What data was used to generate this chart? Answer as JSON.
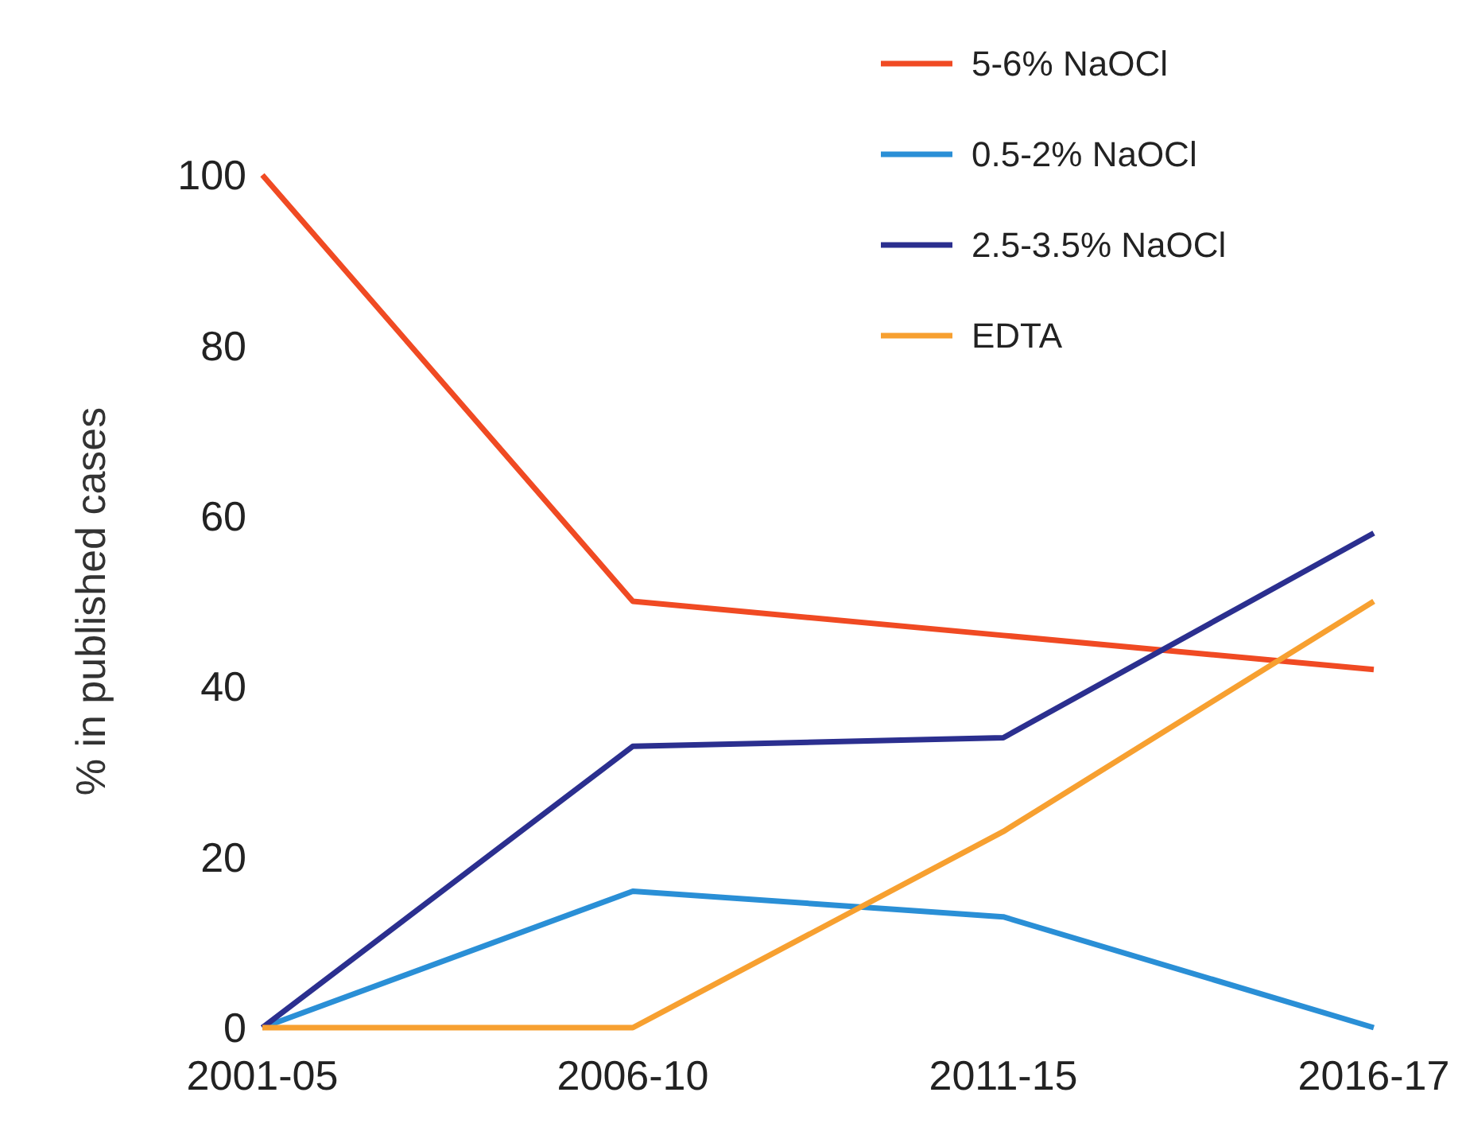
{
  "chart_data": {
    "type": "line",
    "ylabel": "% in published cases",
    "categories": [
      "2001-05",
      "2006-10",
      "2011-15",
      "2016-17"
    ],
    "series": [
      {
        "name": "5-6% NaOCl",
        "color": "#f04a23",
        "values": [
          100,
          50,
          46,
          42
        ]
      },
      {
        "name": "0.5-2% NaOCl",
        "color": "#2a8fd6",
        "values": [
          0,
          16,
          13,
          0
        ]
      },
      {
        "name": "2.5-3.5% NaOCl",
        "color": "#2b2f8f",
        "values": [
          0,
          33,
          34,
          58
        ]
      },
      {
        "name": "EDTA",
        "color": "#f7a030",
        "values": [
          0,
          0,
          23,
          50
        ]
      }
    ],
    "ylim": [
      0,
      100
    ],
    "yticks": [
      0,
      20,
      40,
      60,
      80,
      100
    ],
    "grid": false,
    "legend": "top right",
    "marker": "none",
    "line_style": "solid"
  }
}
